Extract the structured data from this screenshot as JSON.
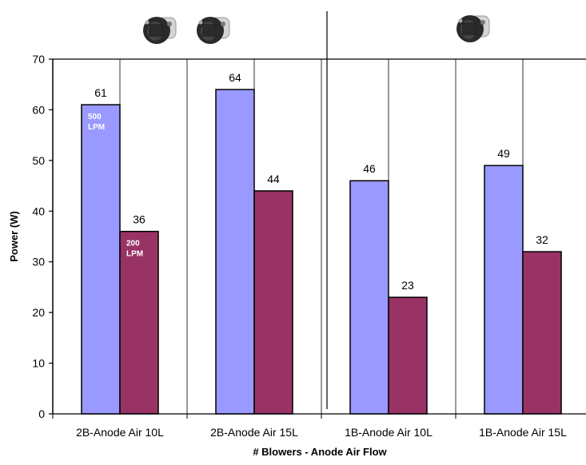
{
  "chart_data": {
    "type": "bar",
    "title": "",
    "xlabel": "# Blowers - Anode Air Flow",
    "ylabel": "Power (W)",
    "ylim": [
      0,
      70
    ],
    "yticks": [
      0,
      10,
      20,
      30,
      40,
      50,
      60,
      70
    ],
    "categories": [
      "2B-Anode Air 10L",
      "2B-Anode Air 15L",
      "1B-Anode Air 10L",
      "1B-Anode Air 15L"
    ],
    "series": [
      {
        "name": "500 LPM",
        "values": [
          61,
          64,
          46,
          49
        ],
        "color": "#9999ff"
      },
      {
        "name": "200 LPM",
        "values": [
          36,
          44,
          23,
          32
        ],
        "color": "#993366"
      }
    ],
    "data_labels": true,
    "gridlines": "vertical category separators",
    "group_divider_after_category": 2,
    "blower_images": [
      {
        "icon": "blower-icon",
        "group": "2B",
        "count": 2
      },
      {
        "icon": "blower-icon",
        "group": "1B",
        "count": 1
      }
    ]
  }
}
